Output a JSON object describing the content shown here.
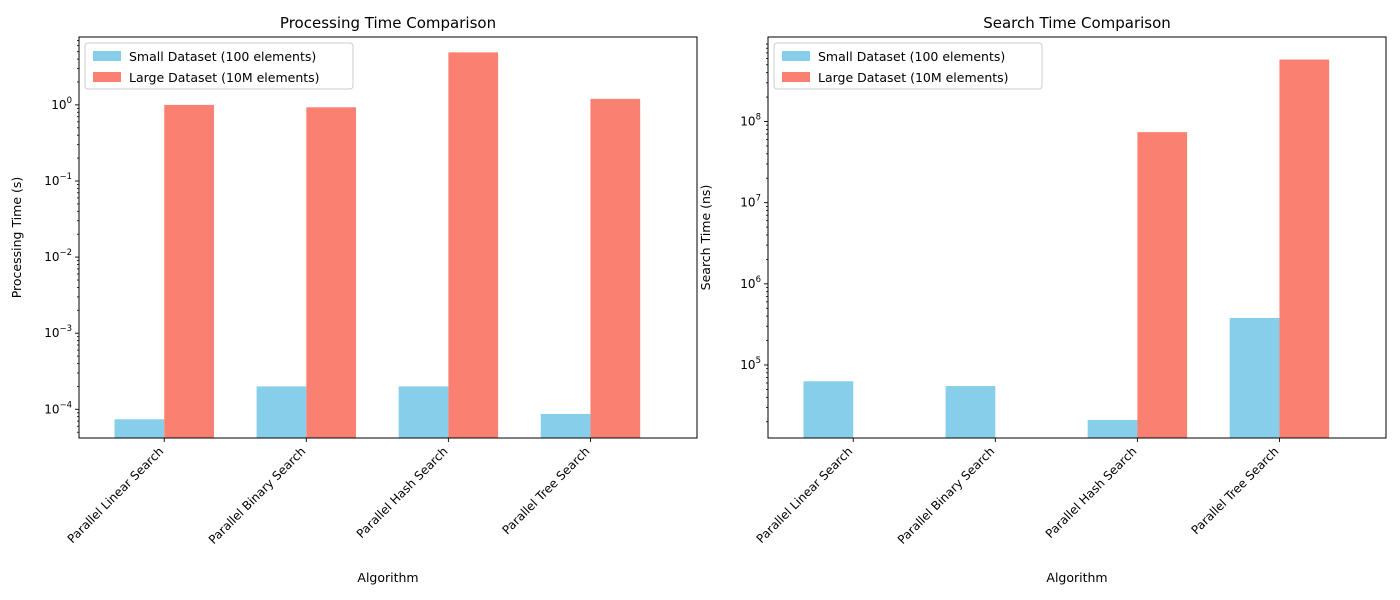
{
  "chart_data": [
    {
      "type": "bar",
      "title": "Processing Time Comparison",
      "xlabel": "Algorithm",
      "ylabel": "Processing Time (s)",
      "yscale": "log",
      "ylim": [
        4.2e-05,
        7.8
      ],
      "yticks": [
        {
          "value": 0.0001,
          "base": "10",
          "exp": "−4"
        },
        {
          "value": 0.001,
          "base": "10",
          "exp": "−3"
        },
        {
          "value": 0.01,
          "base": "10",
          "exp": "−2"
        },
        {
          "value": 0.1,
          "base": "10",
          "exp": "−1"
        },
        {
          "value": 1,
          "base": "10",
          "exp": "0"
        }
      ],
      "categories": [
        "Parallel Linear Search",
        "Parallel Binary Search",
        "Parallel Hash Search",
        "Parallel Tree Search"
      ],
      "series": [
        {
          "name": "Small Dataset (100 elements)",
          "color": "#87CEEB",
          "values": [
            7.4e-05,
            0.0002,
            0.0002,
            8.7e-05
          ]
        },
        {
          "name": "Large Dataset (10M elements)",
          "color": "#FA8072",
          "values": [
            1.0,
            0.93,
            4.9,
            1.2
          ]
        }
      ],
      "legend": "top-left",
      "grid": false
    },
    {
      "type": "bar",
      "title": "Search Time Comparison",
      "xlabel": "Algorithm",
      "ylabel": "Search Time (ns)",
      "yscale": "log",
      "ylim": [
        12600,
        1100000000.0
      ],
      "yticks": [
        {
          "value": 100000,
          "base": "10",
          "exp": "5"
        },
        {
          "value": 1000000,
          "base": "10",
          "exp": "6"
        },
        {
          "value": 10000000,
          "base": "10",
          "exp": "7"
        },
        {
          "value": 100000000,
          "base": "10",
          "exp": "8"
        }
      ],
      "categories": [
        "Parallel Linear Search",
        "Parallel Binary Search",
        "Parallel Hash Search",
        "Parallel Tree Search"
      ],
      "series": [
        {
          "name": "Small Dataset (100 elements)",
          "color": "#87CEEB",
          "values": [
            63000,
            55000,
            21000,
            380000
          ]
        },
        {
          "name": "Large Dataset (10M elements)",
          "color": "#FA8072",
          "values": [
            null,
            null,
            74000000,
            580000000
          ]
        }
      ],
      "legend": "top-left",
      "grid": false
    }
  ]
}
